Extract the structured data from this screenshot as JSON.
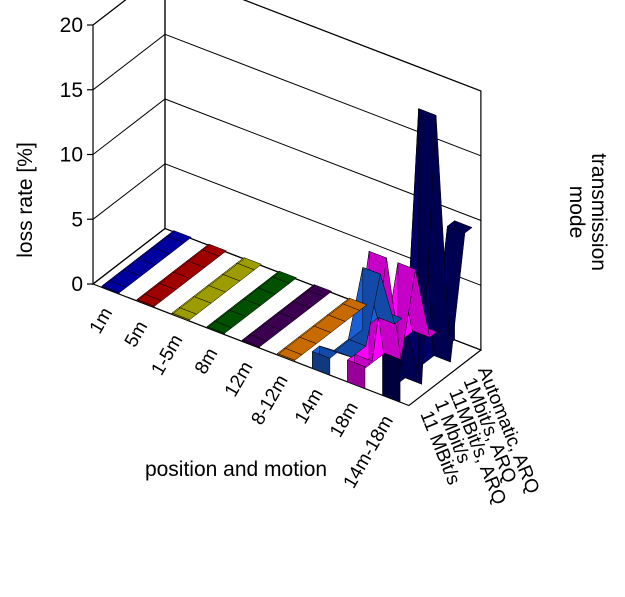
{
  "chart_data": {
    "type": "bar3d",
    "ylabel": "loss rate [%]",
    "xlabel": "position and motion",
    "zlabel_lines": [
      "transmission",
      "mode"
    ],
    "ylim": [
      0,
      20
    ],
    "y_ticks": [
      "0",
      "5",
      "10",
      "15",
      "20"
    ],
    "categories": [
      "1m",
      "5m",
      "1-5m",
      "8m",
      "12m",
      "8-12m",
      "14m",
      "18m",
      "14m-18m"
    ],
    "series": [
      {
        "name": "11 MBit/s",
        "values": [
          0.1,
          0.1,
          0.1,
          0.1,
          0.1,
          0.1,
          1.3,
          1.7,
          5.0
        ]
      },
      {
        "name": "1 Mbit/s",
        "values": [
          0.1,
          0.1,
          0.1,
          0.1,
          0.1,
          0.1,
          0.1,
          8.8,
          0.1
        ]
      },
      {
        "name": "11MBit/s, ARQ",
        "values": [
          0.1,
          0.1,
          0.1,
          0.1,
          0.1,
          0.1,
          0.1,
          0.1,
          20.0
        ]
      },
      {
        "name": "1Mbit/s, ARQ",
        "values": [
          0.1,
          0.1,
          0.1,
          0.1,
          0.1,
          0.1,
          4.8,
          6.2,
          0.1
        ]
      },
      {
        "name": "Automatic, ARQ",
        "values": [
          0.1,
          0.1,
          0.1,
          0.1,
          0.1,
          0.1,
          0.1,
          0.1,
          9.2
        ]
      }
    ],
    "colors": [
      "#0000cc",
      "#cc0000",
      "#c8c800",
      "#006600",
      "#4d0066",
      "#ff8800",
      "#1a5fd6",
      "#ff00ff",
      "#000066"
    ],
    "grid": true
  }
}
